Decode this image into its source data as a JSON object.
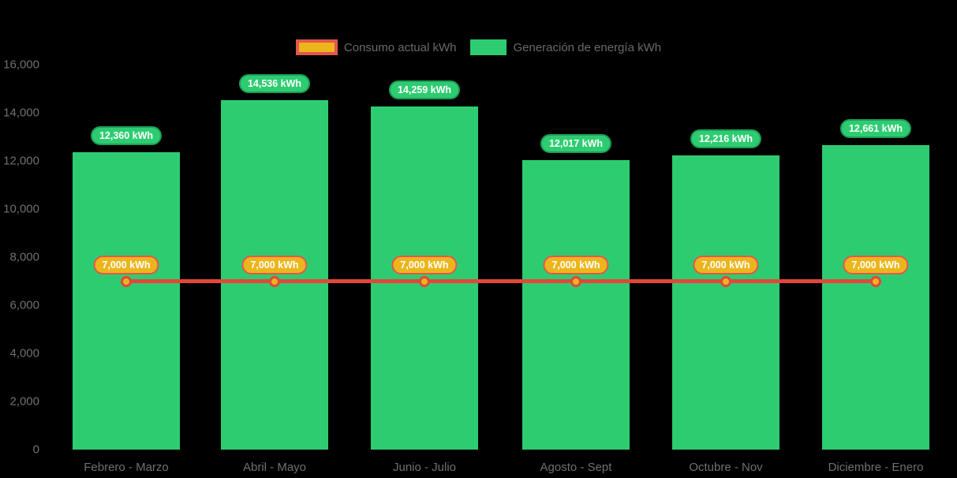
{
  "page": {
    "background": "#000000"
  },
  "legend": {
    "position": "top-center",
    "items": [
      {
        "label": "Consumo actual kWh",
        "swatch_fill": "#ecb51d",
        "swatch_border": "#e2574c"
      },
      {
        "label": "Generación de energía kWh",
        "swatch_fill": "#2ecc71"
      }
    ]
  },
  "chart_data": {
    "type": "bar",
    "title": "",
    "categories": [
      "Febrero - Marzo",
      "Abril - Mayo",
      "Junio - Julio",
      "Agosto - Sept",
      "Octubre - Nov",
      "Diciembre - Enero"
    ],
    "series": [
      {
        "name": "Generación de energía kWh",
        "type": "bar",
        "color": "#2ecc71",
        "label_pill_fill": "#2ecc71",
        "label_pill_border": "#1a9e58",
        "values": [
          12360,
          14536,
          14259,
          12017,
          12216,
          12661
        ],
        "labels": [
          "12,360 kWh",
          "14,536 kWh",
          "14,259 kWh",
          "12,017 kWh",
          "12,216 kWh",
          "12,661 kWh"
        ]
      },
      {
        "name": "Consumo actual kWh",
        "type": "line",
        "color": "#e2473a",
        "marker_color": "#ecb51d",
        "label_pill_fill": "#ecb51d",
        "label_pill_border": "#e2574c",
        "values": [
          7000,
          7000,
          7000,
          7000,
          7000,
          7000
        ],
        "labels": [
          "7,000 kWh",
          "7,000 kWh",
          "7,000 kWh",
          "7,000 kWh",
          "7,000 kWh",
          "7,000 kWh"
        ]
      }
    ],
    "ylim": [
      0,
      16000
    ],
    "yticks": [
      {
        "value": 0,
        "label": "0"
      },
      {
        "value": 2000,
        "label": "2,000"
      },
      {
        "value": 4000,
        "label": "4,000"
      },
      {
        "value": 6000,
        "label": "6,000"
      },
      {
        "value": 8000,
        "label": "8,000"
      },
      {
        "value": 10000,
        "label": "10,000"
      },
      {
        "value": 12000,
        "label": "12,000"
      },
      {
        "value": 14000,
        "label": "14,000"
      },
      {
        "value": 16000,
        "label": "16,000"
      }
    ],
    "grid": false,
    "legend_position": "top-center"
  }
}
